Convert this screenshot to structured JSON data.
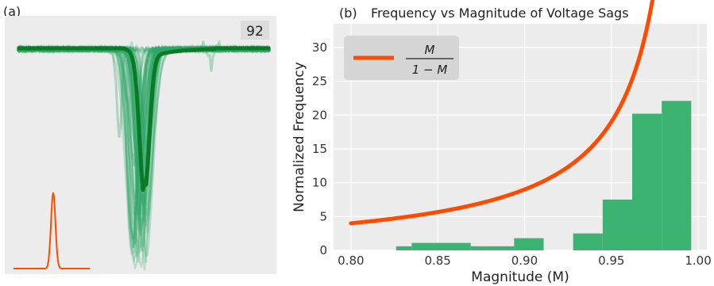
{
  "panel_a": {
    "label": "(a)",
    "badge": "92",
    "colors": {
      "traces": "#2fa866",
      "mean": "#0b7a28",
      "pulse": "#ff4b00",
      "background": "#ececec"
    }
  },
  "panel_b": {
    "label": "(b)"
  },
  "chart_data": {
    "type": "bar",
    "title": "Frequency vs Magnitude of Voltage Sags",
    "xlabel": "Magnitude (M)",
    "ylabel": "Normalized Frequency",
    "xlim": [
      0.79,
      1.005
    ],
    "ylim": [
      0,
      33.5
    ],
    "xticks": [
      "0.80",
      "0.85",
      "0.90",
      "0.95",
      "1.00"
    ],
    "xtick_values": [
      0.8,
      0.85,
      0.9,
      0.95,
      1.0
    ],
    "yticks": [
      "0",
      "5",
      "10",
      "15",
      "20",
      "25",
      "30"
    ],
    "ytick_values": [
      0,
      5,
      10,
      15,
      20,
      25,
      30
    ],
    "grid": true,
    "legend_position": "top-left",
    "histogram": {
      "color": "#3cb371",
      "bins": [
        {
          "x0": 0.826,
          "x1": 0.835,
          "value": 0.6
        },
        {
          "x0": 0.835,
          "x1": 0.852,
          "value": 1.1
        },
        {
          "x0": 0.852,
          "x1": 0.869,
          "value": 1.1
        },
        {
          "x0": 0.869,
          "x1": 0.878,
          "value": 0.6
        },
        {
          "x0": 0.878,
          "x1": 0.894,
          "value": 0.6
        },
        {
          "x0": 0.894,
          "x1": 0.911,
          "value": 1.8
        },
        {
          "x0": 0.928,
          "x1": 0.945,
          "value": 2.5
        },
        {
          "x0": 0.945,
          "x1": 0.962,
          "value": 7.5
        },
        {
          "x0": 0.962,
          "x1": 0.979,
          "value": 20.2
        },
        {
          "x0": 0.979,
          "x1": 0.996,
          "value": 22.1
        }
      ]
    },
    "curve": {
      "legend_numerator": "M",
      "legend_denominator": "1 − M",
      "color": "#ff4b00",
      "x_start": 0.8,
      "x_end": 0.9885
    }
  }
}
